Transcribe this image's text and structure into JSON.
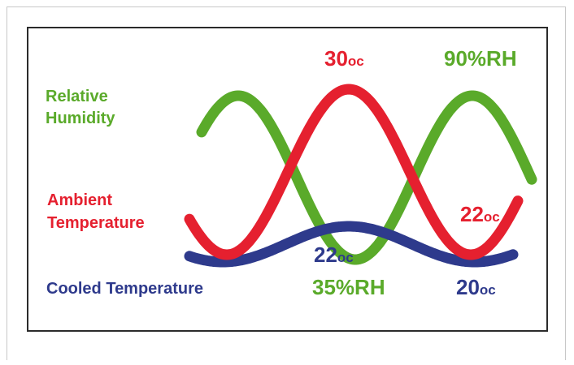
{
  "labels": {
    "relative_humidity": [
      "Relative",
      "Humidity"
    ],
    "ambient_temperature": [
      "Ambient",
      "Temperature"
    ],
    "cooled_temperature": "Cooled Temperature"
  },
  "values": {
    "ambient_peak": {
      "number": "30",
      "unit": "oc"
    },
    "humidity_peak": "90%RH",
    "humidity_low": "35%RH",
    "ambient_low": {
      "number": "22",
      "unit": "oc"
    },
    "cooled_peak": {
      "number": "22",
      "unit": "oc"
    },
    "cooled_low": {
      "number": "20",
      "unit": "oc"
    }
  },
  "colors": {
    "humidity": "#5aaa2a",
    "ambient": "#e5202f",
    "cooled": "#2e3a8c",
    "frame": "#2b2b2b"
  }
}
